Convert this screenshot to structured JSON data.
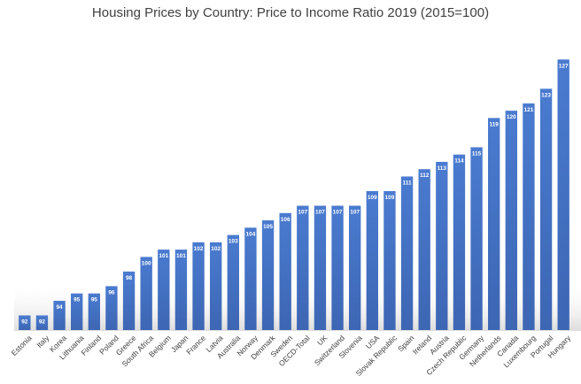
{
  "chart_data": {
    "type": "bar",
    "title": "Housing Prices by Country: Price to Income Ratio 2019 (2015=100)",
    "xlabel": "",
    "ylabel": "",
    "ylim": [
      90,
      128
    ],
    "grid": false,
    "legend": "none",
    "bar_color": "#4472C4",
    "categories": [
      "Estonia",
      "Italy",
      "Korea",
      "Lithuania",
      "Finland",
      "Poland",
      "Greece",
      "South Africa",
      "Belgium",
      "Japan",
      "France",
      "Latvia",
      "Australia",
      "Norway",
      "Denmark",
      "Sweden",
      "OECD-Total",
      "UK",
      "Switzerland",
      "Slovenia",
      "USA",
      "Slovak Republic",
      "Spain",
      "Ireland",
      "Austria",
      "Czech Republic",
      "Germany",
      "Netherlands",
      "Canada",
      "Luxembourg",
      "Portugal",
      "Hungary"
    ],
    "values": [
      92,
      92,
      94,
      95,
      95,
      96,
      98,
      100,
      101,
      101,
      102,
      102,
      103,
      104,
      105,
      106,
      107,
      107,
      107,
      107,
      109,
      109,
      111,
      112,
      113,
      114,
      115,
      119,
      120,
      121,
      123,
      127
    ]
  }
}
